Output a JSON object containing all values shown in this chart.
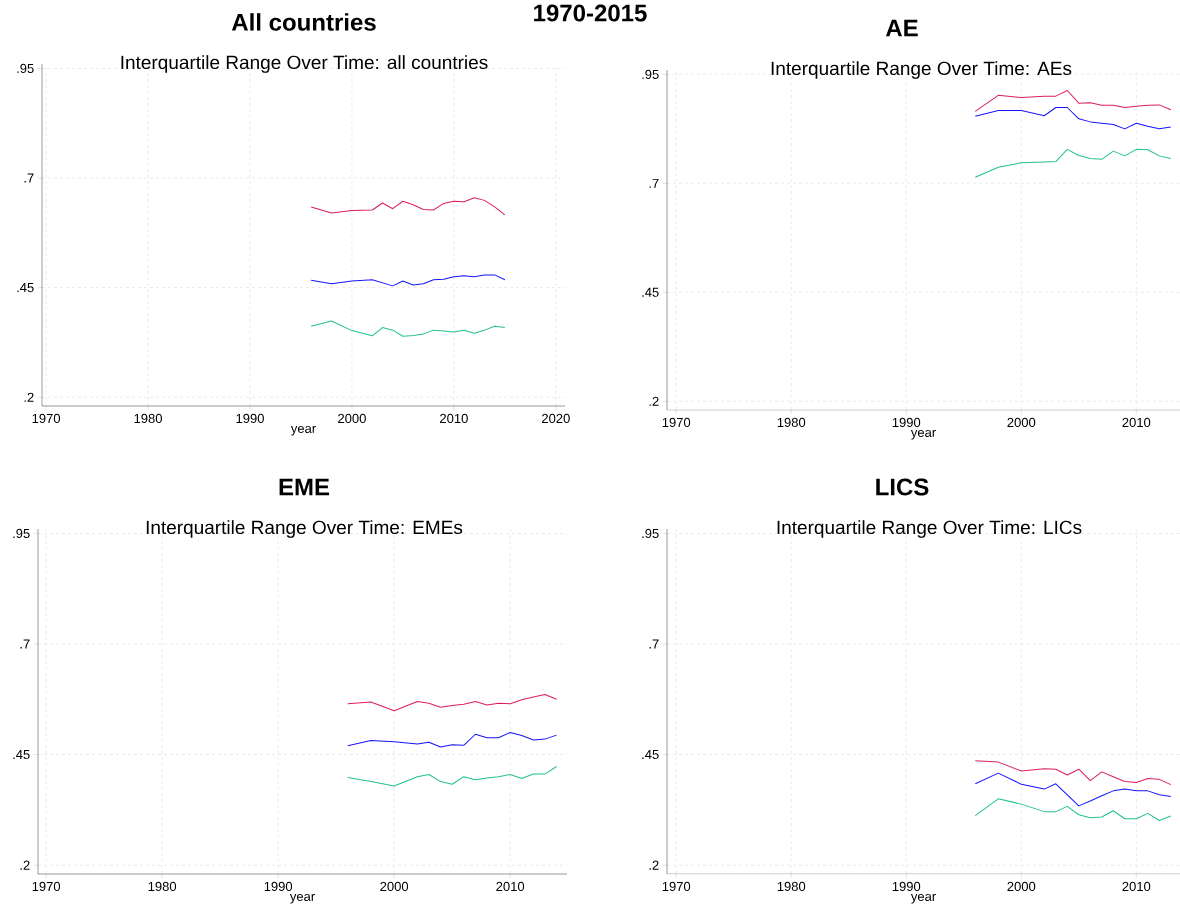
{
  "chart_data": [
    {
      "type": "line",
      "title": "All countries",
      "subtitle": "Interquartile Range Over Time: all countries",
      "xlabel": "year",
      "annotations": [
        "1970-2015"
      ],
      "grid": true,
      "x": [
        1996,
        1998,
        2000,
        2002,
        2003,
        2004,
        2005,
        2006,
        2007,
        2008,
        2009,
        2010,
        2011,
        2012,
        2013,
        2014,
        2015
      ],
      "series": [
        {
          "color": "#dc1f5a",
          "values": [
            0.634,
            0.62,
            0.626,
            0.627,
            0.643,
            0.63,
            0.647,
            0.639,
            0.628,
            0.627,
            0.642,
            0.647,
            0.646,
            0.655,
            0.649,
            0.634,
            0.616
          ]
        },
        {
          "color": "#1515ff",
          "values": [
            0.467,
            0.459,
            0.465,
            0.468,
            0.461,
            0.454,
            0.465,
            0.456,
            0.459,
            0.468,
            0.469,
            0.475,
            0.477,
            0.475,
            0.479,
            0.479,
            0.468
          ]
        },
        {
          "color": "#21c288",
          "values": [
            0.362,
            0.374,
            0.352,
            0.34,
            0.359,
            0.353,
            0.339,
            0.341,
            0.344,
            0.353,
            0.351,
            0.349,
            0.353,
            0.346,
            0.353,
            0.362,
            0.359
          ]
        }
      ],
      "xlim": [
        1969.6,
        2020.9
      ],
      "ylim": [
        0.18,
        0.96
      ],
      "xticks": [
        1970,
        1980,
        1990,
        2000,
        2010,
        2020
      ],
      "yticks": [
        {
          "value": 0.2,
          "label": ".2"
        },
        {
          "value": 0.45,
          "label": ".45"
        },
        {
          "value": 0.7,
          "label": ".7"
        },
        {
          "value": 0.95,
          "label": ".95"
        }
      ]
    },
    {
      "type": "line",
      "title": "AE",
      "subtitle": "Interquartile Range Over Time: AEs",
      "xlabel": "year",
      "grid": true,
      "x": [
        1996,
        1998,
        2000,
        2002,
        2003,
        2004,
        2005,
        2006,
        2007,
        2008,
        2009,
        2010,
        2011,
        2012,
        2013
      ],
      "series": [
        {
          "color": "#dc1f5a",
          "values": [
            0.865,
            0.902,
            0.897,
            0.9,
            0.9,
            0.913,
            0.884,
            0.885,
            0.879,
            0.879,
            0.874,
            0.877,
            0.879,
            0.88,
            0.869
          ]
        },
        {
          "color": "#1515ff",
          "values": [
            0.854,
            0.867,
            0.867,
            0.855,
            0.874,
            0.874,
            0.848,
            0.841,
            0.838,
            0.835,
            0.825,
            0.838,
            0.831,
            0.825,
            0.829
          ]
        },
        {
          "color": "#21c288",
          "values": [
            0.714,
            0.737,
            0.747,
            0.749,
            0.75,
            0.778,
            0.764,
            0.757,
            0.755,
            0.774,
            0.763,
            0.778,
            0.777,
            0.763,
            0.757
          ]
        }
      ],
      "xlim": [
        1969.2,
        2013.8
      ],
      "ylim": [
        0.18,
        0.96
      ],
      "xticks": [
        1970,
        1980,
        1990,
        2000,
        2010
      ],
      "yticks": [
        {
          "value": 0.2,
          "label": ".2"
        },
        {
          "value": 0.45,
          "label": ".45"
        },
        {
          "value": 0.7,
          "label": ".7"
        },
        {
          "value": 0.95,
          "label": ".95"
        }
      ]
    },
    {
      "type": "line",
      "title": "EME",
      "subtitle": "Interquartile Range Over Time: EMEs",
      "xlabel": "year",
      "grid": true,
      "x": [
        1996,
        1998,
        2000,
        2002,
        2003,
        2004,
        2005,
        2006,
        2007,
        2008,
        2009,
        2010,
        2011,
        2012,
        2013,
        2014
      ],
      "series": [
        {
          "color": "#dc1f5a",
          "values": [
            0.565,
            0.569,
            0.549,
            0.57,
            0.566,
            0.557,
            0.561,
            0.564,
            0.57,
            0.562,
            0.566,
            0.565,
            0.574,
            0.58,
            0.586,
            0.575
          ]
        },
        {
          "color": "#1515ff",
          "values": [
            0.47,
            0.482,
            0.479,
            0.474,
            0.478,
            0.467,
            0.472,
            0.471,
            0.496,
            0.488,
            0.488,
            0.5,
            0.493,
            0.483,
            0.485,
            0.494
          ]
        },
        {
          "color": "#21c288",
          "values": [
            0.398,
            0.389,
            0.379,
            0.4,
            0.405,
            0.389,
            0.383,
            0.4,
            0.393,
            0.397,
            0.4,
            0.405,
            0.396,
            0.406,
            0.406,
            0.423
          ]
        }
      ],
      "xlim": [
        1969.3,
        2014.9
      ],
      "ylim": [
        0.18,
        0.96
      ],
      "xticks": [
        1970,
        1980,
        1990,
        2000,
        2010
      ],
      "yticks": [
        {
          "value": 0.2,
          "label": ".2"
        },
        {
          "value": 0.45,
          "label": ".45"
        },
        {
          "value": 0.7,
          "label": ".7"
        },
        {
          "value": 0.95,
          "label": ".95"
        }
      ]
    },
    {
      "type": "line",
      "title": "LICS",
      "subtitle": "Interquartile Range Over Time: LICs",
      "xlabel": "year",
      "grid": true,
      "x": [
        1996,
        1998,
        2000,
        2002,
        2003,
        2004,
        2005,
        2006,
        2007,
        2008,
        2009,
        2010,
        2011,
        2012,
        2013
      ],
      "series": [
        {
          "color": "#dc1f5a",
          "values": [
            0.436,
            0.433,
            0.413,
            0.418,
            0.417,
            0.404,
            0.417,
            0.391,
            0.411,
            0.4,
            0.389,
            0.387,
            0.396,
            0.394,
            0.382
          ]
        },
        {
          "color": "#1515ff",
          "values": [
            0.384,
            0.408,
            0.383,
            0.372,
            0.384,
            0.359,
            0.334,
            0.345,
            0.357,
            0.368,
            0.372,
            0.368,
            0.368,
            0.359,
            0.355
          ]
        },
        {
          "color": "#21c288",
          "values": [
            0.312,
            0.35,
            0.338,
            0.321,
            0.321,
            0.333,
            0.314,
            0.307,
            0.309,
            0.323,
            0.305,
            0.305,
            0.317,
            0.301,
            0.311
          ]
        }
      ],
      "xlim": [
        1969.2,
        2013.8
      ],
      "ylim": [
        0.18,
        0.96
      ],
      "xticks": [
        1970,
        1980,
        1990,
        2000,
        2010
      ],
      "yticks": [
        {
          "value": 0.2,
          "label": ".2"
        },
        {
          "value": 0.45,
          "label": ".45"
        },
        {
          "value": 0.7,
          "label": ".7"
        },
        {
          "value": 0.95,
          "label": ".95"
        }
      ]
    }
  ]
}
